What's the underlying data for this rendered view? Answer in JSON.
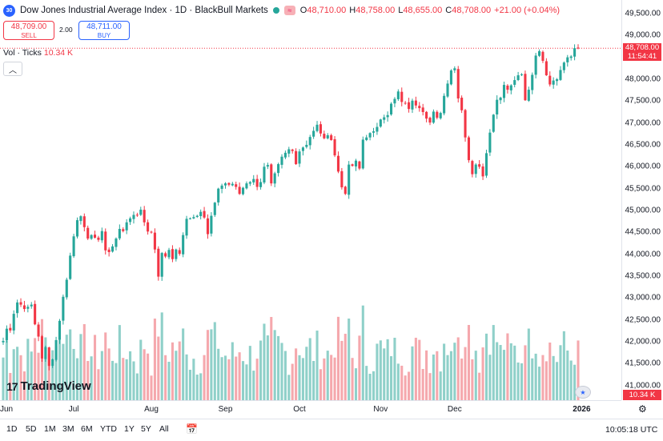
{
  "header": {
    "logo": "30",
    "title": "Dow Jones Industrial Average Index · 1D · BlackBull Markets",
    "market_status_icon": "market-open-dot",
    "ohlc": [
      {
        "k": "O",
        "v": "48,710.00"
      },
      {
        "k": "H",
        "v": "48,758.00"
      },
      {
        "k": "L",
        "v": "48,655.00"
      },
      {
        "k": "C",
        "v": "48,708.00"
      },
      {
        "k": "",
        "v": "+21.00 (+0.04%)"
      }
    ]
  },
  "trade": {
    "sell_price": "48,709.00",
    "sell_label": "SELL",
    "spread": "2.00",
    "buy_price": "48,711.00",
    "buy_label": "BUY"
  },
  "volume_legend": {
    "label": "Vol · Ticks",
    "value": "10.34 K"
  },
  "price_tag": {
    "price": "48,708.00",
    "countdown": "11:54:41"
  },
  "volume_tag": "10.34 K",
  "watermark": "TradingView",
  "price_axis": [
    "49,500.00",
    "49,000.00",
    "48,500.00",
    "48,000.00",
    "47,500.00",
    "47,000.00",
    "46,500.00",
    "46,000.00",
    "45,500.00",
    "45,000.00",
    "44,500.00",
    "44,000.00",
    "43,500.00",
    "43,000.00",
    "42,500.00",
    "42,000.00",
    "41,500.00",
    "41,000.00"
  ],
  "time_axis": [
    {
      "label": "Jun",
      "bold": false
    },
    {
      "label": "Jul",
      "bold": false
    },
    {
      "label": "Aug",
      "bold": false
    },
    {
      "label": "Sep",
      "bold": false
    },
    {
      "label": "Oct",
      "bold": false
    },
    {
      "label": "Nov",
      "bold": false
    },
    {
      "label": "Dec",
      "bold": false
    },
    {
      "label": "2026",
      "bold": true
    }
  ],
  "ranges": [
    "1D",
    "5D",
    "1M",
    "3M",
    "6M",
    "YTD",
    "1Y",
    "5Y",
    "All"
  ],
  "clock": "10:05:18 UTC",
  "colors": {
    "up": "#26a69a",
    "down": "#f23645",
    "up_vol": "#8fd0c9",
    "down_vol": "#f5a8ad",
    "accent": "#2962ff"
  },
  "chart_data": {
    "type": "candlestick",
    "ylim": [
      40850,
      49700
    ],
    "last_price": 48708,
    "closes": [
      42020,
      42300,
      42260,
      42640,
      42900,
      42850,
      42750,
      42800,
      42850,
      42400,
      42120,
      41620,
      41880,
      41450,
      41600,
      42040,
      42480,
      43030,
      43420,
      43970,
      44410,
      44780,
      44870,
      44620,
      44360,
      44440,
      44380,
      44330,
      44530,
      44090,
      44050,
      44180,
      44360,
      44580,
      44530,
      44730,
      44820,
      44900,
      44900,
      45020,
      44730,
      44520,
      44500,
      44110,
      43490,
      44030,
      43950,
      44100,
      43890,
      44110,
      44010,
      44440,
      44810,
      44820,
      44850,
      44880,
      44970,
      44840,
      44460,
      44880,
      45180,
      45500,
      45570,
      45620,
      45590,
      45610,
      45540,
      45380,
      45520,
      45620,
      45650,
      45720,
      45540,
      45650,
      46000,
      46040,
      45620,
      45850,
      46060,
      46230,
      46320,
      46400,
      46360,
      46060,
      46350,
      46440,
      46500,
      46680,
      46820,
      46960,
      46760,
      46650,
      46720,
      46610,
      46260,
      45890,
      45530,
      45380,
      46050,
      46020,
      46140,
      45960,
      46620,
      46670,
      46770,
      46810,
      46910,
      47080,
      47130,
      47180,
      47440,
      47550,
      47720,
      47480,
      47460,
      47320,
      47510,
      47400,
      47340,
      47250,
      47100,
      47010,
      47260,
      47120,
      47230,
      47620,
      47900,
      48200,
      48250,
      47560,
      47290,
      46670,
      46150,
      45830,
      46050,
      46000,
      45780,
      46310,
      46780,
      47190,
      47530,
      47580,
      47870,
      47760,
      47860,
      47980,
      48090,
      48110,
      47520,
      47760,
      48100,
      48540,
      48640,
      48420,
      48090,
      47880,
      47970,
      48000,
      48210,
      48380,
      48500,
      48520,
      48710,
      48708
    ]
  }
}
